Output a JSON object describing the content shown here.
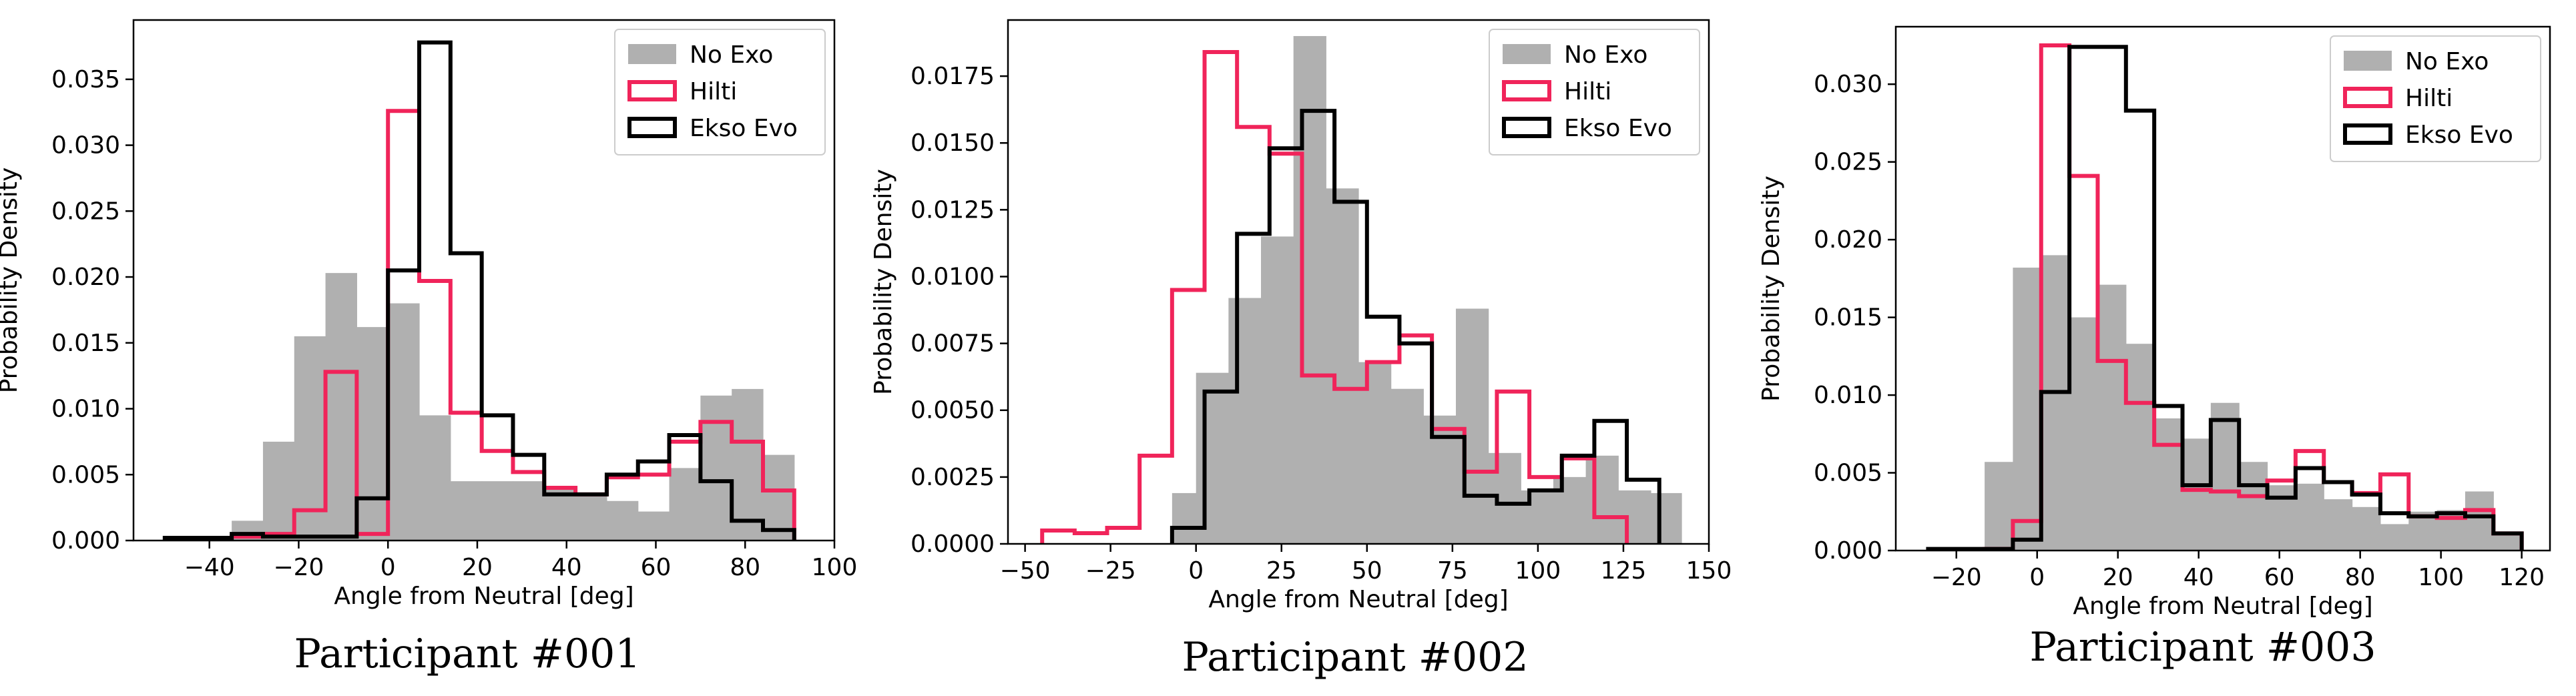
{
  "chart_data": [
    {
      "type": "histogram",
      "xlabel": "Angle from Neutral [deg]",
      "ylabel": "Probability Density",
      "xlim": [
        -57,
        100
      ],
      "ylim": [
        0,
        0.0395
      ],
      "xticks": [
        -40,
        -20,
        0,
        20,
        40,
        60,
        80,
        100
      ],
      "yticks": [
        0.0,
        0.005,
        0.01,
        0.015,
        0.02,
        0.025,
        0.03,
        0.035
      ],
      "ytick_labels": [
        "0.000",
        "0.005",
        "0.010",
        "0.015",
        "0.020",
        "0.025",
        "0.030",
        "0.035"
      ],
      "legend_position": "top-right",
      "caption": "Participant #001",
      "series": [
        {
          "name": "No Exo",
          "style": "filled",
          "color": "#b0b0b0",
          "edges": [
            -35,
            -28,
            -21,
            -14,
            -7,
            0,
            7,
            14,
            21,
            28,
            35,
            42,
            49,
            56,
            63,
            70,
            77,
            84,
            91
          ],
          "values": [
            0.0015,
            0.0075,
            0.0155,
            0.0203,
            0.0162,
            0.018,
            0.0095,
            0.0045,
            0.0045,
            0.0045,
            0.004,
            0.0035,
            0.003,
            0.0022,
            0.0055,
            0.011,
            0.0115,
            0.0065
          ]
        },
        {
          "name": "Hilti",
          "style": "step",
          "color": "#f0245a",
          "edges": [
            -35,
            -28,
            -21,
            -14,
            -7,
            0,
            7,
            14,
            21,
            28,
            35,
            42,
            49,
            56,
            63,
            70,
            77,
            84,
            91
          ],
          "values": [
            0.0003,
            0.0005,
            0.0023,
            0.0128,
            0.0005,
            0.0326,
            0.0197,
            0.0097,
            0.0068,
            0.0052,
            0.004,
            0.0035,
            0.0048,
            0.005,
            0.0075,
            0.009,
            0.0075,
            0.0038
          ]
        },
        {
          "name": "Ekso Evo",
          "style": "step",
          "color": "#000000",
          "edges": [
            -50,
            -35,
            -28,
            -21,
            -14,
            -7,
            0,
            7,
            14,
            21,
            28,
            35,
            42,
            49,
            56,
            63,
            70,
            77,
            84,
            91
          ],
          "values": [
            0.0002,
            0.0005,
            0.0003,
            0.0003,
            0.0003,
            0.0032,
            0.0205,
            0.0378,
            0.0218,
            0.0095,
            0.0065,
            0.0035,
            0.0035,
            0.005,
            0.006,
            0.008,
            0.0045,
            0.0015,
            0.0008
          ]
        }
      ]
    },
    {
      "type": "histogram",
      "xlabel": "Angle from Neutral [deg]",
      "ylabel": "Probability Density",
      "xlim": [
        -55,
        150
      ],
      "ylim": [
        0,
        0.0196
      ],
      "xticks": [
        -50,
        -25,
        0,
        25,
        50,
        75,
        100,
        125,
        150
      ],
      "yticks": [
        0.0,
        0.0025,
        0.005,
        0.0075,
        0.01,
        0.0125,
        0.015,
        0.0175
      ],
      "ytick_labels": [
        "0.0000",
        "0.0025",
        "0.0050",
        "0.0075",
        "0.0100",
        "0.0125",
        "0.0150",
        "0.0175"
      ],
      "legend_position": "top-right",
      "caption": "Participant #002",
      "series": [
        {
          "name": "No Exo",
          "style": "filled",
          "color": "#b0b0b0",
          "edges": [
            -7,
            0,
            9.5,
            19,
            28.5,
            38,
            47.5,
            57,
            66.5,
            76,
            85.5,
            95,
            104.5,
            114,
            123.5,
            133,
            142
          ],
          "values": [
            0.0019,
            0.0064,
            0.0092,
            0.0115,
            0.019,
            0.0133,
            0.0068,
            0.0058,
            0.0048,
            0.0088,
            0.0034,
            0.002,
            0.0025,
            0.0033,
            0.002,
            0.0019
          ]
        },
        {
          "name": "Hilti",
          "style": "step",
          "color": "#f0245a",
          "edges": [
            -45,
            -35.5,
            -26,
            -16.5,
            -7,
            2.5,
            12,
            21.5,
            31,
            40.5,
            50,
            59.5,
            69,
            78.5,
            88,
            97.5,
            107,
            116.5,
            126
          ],
          "values": [
            0.0005,
            0.0004,
            0.0006,
            0.0033,
            0.0095,
            0.0184,
            0.0156,
            0.0146,
            0.0063,
            0.0058,
            0.0068,
            0.0078,
            0.0043,
            0.0027,
            0.0057,
            0.0025,
            0.0032,
            0.001
          ]
        },
        {
          "name": "Ekso Evo",
          "style": "step",
          "color": "#000000",
          "edges": [
            -7,
            2.5,
            12,
            21.5,
            31,
            40.5,
            50,
            59.5,
            69,
            78.5,
            88,
            97.5,
            107,
            116.5,
            126,
            135.5
          ],
          "values": [
            0.0006,
            0.0057,
            0.0116,
            0.0148,
            0.0162,
            0.0128,
            0.0085,
            0.0075,
            0.004,
            0.0018,
            0.0015,
            0.002,
            0.0033,
            0.0046,
            0.0024
          ]
        }
      ]
    },
    {
      "type": "histogram",
      "xlabel": "Angle from Neutral [deg]",
      "ylabel": "Probability Density",
      "xlim": [
        -35,
        127
      ],
      "ylim": [
        0,
        0.0337
      ],
      "xticks": [
        -20,
        0,
        20,
        40,
        60,
        80,
        100,
        120
      ],
      "yticks": [
        0.0,
        0.005,
        0.01,
        0.015,
        0.02,
        0.025,
        0.03
      ],
      "ytick_labels": [
        "0.000",
        "0.005",
        "0.010",
        "0.015",
        "0.020",
        "0.025",
        "0.030"
      ],
      "legend_position": "top-right",
      "caption": "Participant #003",
      "series": [
        {
          "name": "No Exo",
          "style": "filled",
          "color": "#b0b0b0",
          "edges": [
            -13,
            -6,
            1,
            8,
            15,
            22,
            29,
            36,
            43,
            50,
            57,
            64,
            71,
            78,
            85,
            92,
            99,
            106,
            113,
            120
          ],
          "values": [
            0.0057,
            0.0182,
            0.019,
            0.015,
            0.0171,
            0.0133,
            0.0085,
            0.0072,
            0.0095,
            0.0057,
            0.0042,
            0.0043,
            0.0033,
            0.0028,
            0.0017,
            0.0025,
            0.0026,
            0.0038,
            0.0011
          ]
        },
        {
          "name": "Hilti",
          "style": "step",
          "color": "#f0245a",
          "edges": [
            -13,
            -6,
            1,
            8,
            15,
            22,
            29,
            36,
            43,
            50,
            57,
            64,
            71,
            78,
            85,
            92,
            99,
            106,
            113,
            120
          ],
          "values": [
            0.0001,
            0.0019,
            0.0325,
            0.0241,
            0.0122,
            0.0095,
            0.0068,
            0.0039,
            0.0038,
            0.0035,
            0.0045,
            0.0064,
            0.0044,
            0.0037,
            0.0049,
            0.0022,
            0.0021,
            0.0026,
            0.0011
          ]
        },
        {
          "name": "Ekso Evo",
          "style": "step",
          "color": "#000000",
          "edges": [
            -27,
            -13,
            -6,
            1,
            8,
            15,
            22,
            29,
            36,
            43,
            50,
            57,
            64,
            71,
            78,
            85,
            92,
            99,
            106,
            113,
            120
          ],
          "values": [
            0.0001,
            0.0001,
            0.0007,
            0.0102,
            0.0324,
            0.0324,
            0.0283,
            0.0093,
            0.0042,
            0.0084,
            0.0042,
            0.0034,
            0.0053,
            0.0044,
            0.0036,
            0.0024,
            0.0022,
            0.0024,
            0.0022,
            0.0011
          ]
        }
      ]
    }
  ]
}
